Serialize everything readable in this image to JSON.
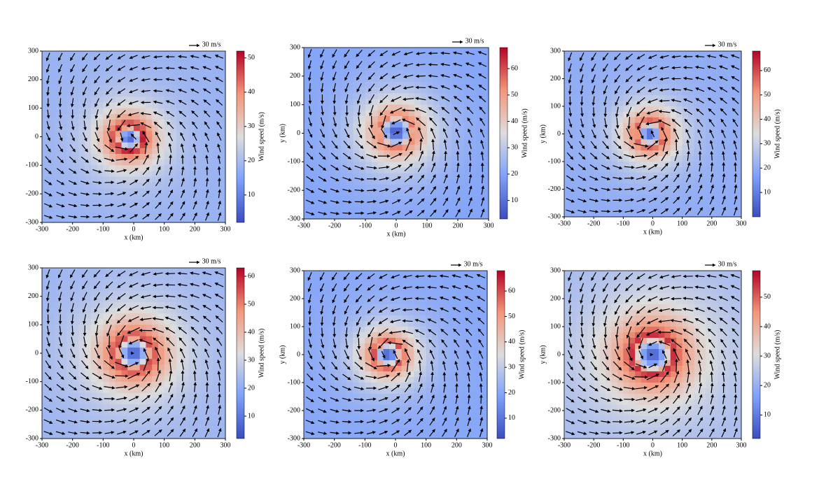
{
  "chart_data": [
    {
      "type": "quiver",
      "xlabel": "x (km)",
      "xlim": [
        -300,
        300
      ],
      "ylim": [
        -300,
        300
      ],
      "xticks": [
        -300,
        -200,
        -100,
        0,
        100,
        200,
        300
      ],
      "yticks": [
        -300,
        -200,
        -100,
        0,
        100,
        200,
        300
      ],
      "key": {
        "label": "30 m/s",
        "value": 30
      },
      "colorbar": {
        "label": "Wind speed (m/s)",
        "lim": [
          2,
          52
        ],
        "ticks": [
          10,
          20,
          30,
          40,
          50
        ]
      },
      "vortex": {
        "center": [
          -15,
          -5
        ],
        "max_speed": 50,
        "rmw": 45,
        "ambient_speed": 18
      }
    },
    {
      "type": "quiver",
      "xlabel": "x (km)",
      "ylabel": "y (km)",
      "xlim": [
        -300,
        300
      ],
      "ylim": [
        -300,
        300
      ],
      "xticks": [
        -300,
        -200,
        -100,
        0,
        100,
        200,
        300
      ],
      "yticks": [
        -300,
        -200,
        -100,
        0,
        100,
        200,
        300
      ],
      "key": {
        "label": "30 m/s",
        "value": 30
      },
      "colorbar": {
        "label": "Wind speed (m/s)",
        "lim": [
          3,
          68
        ],
        "ticks": [
          10,
          20,
          30,
          40,
          50,
          60
        ]
      },
      "vortex": {
        "center": [
          0,
          5
        ],
        "max_speed": 55,
        "rmw": 55,
        "ambient_speed": 20
      }
    },
    {
      "type": "quiver",
      "xlabel": "x (km)",
      "ylabel": "y (km)",
      "xlim": [
        -300,
        300
      ],
      "ylim": [
        -300,
        300
      ],
      "xticks": [
        -300,
        -200,
        -100,
        0,
        100,
        200,
        300
      ],
      "yticks": [
        -300,
        -200,
        -100,
        0,
        100,
        200,
        300
      ],
      "key": {
        "label": "30 m/s",
        "value": 30
      },
      "colorbar": {
        "label": "Wind speed (m/s)",
        "lim": [
          0,
          68
        ],
        "ticks": [
          10,
          20,
          30,
          40,
          50,
          60
        ]
      },
      "vortex": {
        "center": [
          -10,
          0
        ],
        "max_speed": 60,
        "rmw": 45,
        "ambient_speed": 20
      }
    },
    {
      "type": "quiver",
      "xlabel": "x (km)",
      "xlim": [
        -300,
        300
      ],
      "ylim": [
        -300,
        300
      ],
      "xticks": [
        -300,
        -200,
        -100,
        0,
        100,
        200,
        300
      ],
      "yticks": [
        -300,
        -200,
        -100,
        0,
        100,
        200,
        300
      ],
      "key": {
        "label": "30 m/s",
        "value": 30
      },
      "colorbar": {
        "label": "Wind speed (m/s)",
        "lim": [
          2,
          63
        ],
        "ticks": [
          10,
          20,
          30,
          40,
          50,
          60
        ]
      },
      "vortex": {
        "center": [
          0,
          0
        ],
        "max_speed": 58,
        "rmw": 60,
        "ambient_speed": 22
      }
    },
    {
      "type": "quiver",
      "xlabel": "x (km)",
      "ylabel": "y (km)",
      "xlim": [
        -300,
        300
      ],
      "ylim": [
        -300,
        300
      ],
      "xticks": [
        -300,
        -200,
        -100,
        0,
        100,
        200,
        300
      ],
      "yticks": [
        -300,
        -200,
        -100,
        0,
        100,
        200,
        300
      ],
      "key": {
        "label": "30 m/s",
        "value": 30
      },
      "colorbar": {
        "label": "Wind speed (m/s)",
        "lim": [
          2,
          68
        ],
        "ticks": [
          10,
          20,
          30,
          40,
          50,
          60
        ]
      },
      "vortex": {
        "center": [
          -25,
          0
        ],
        "max_speed": 60,
        "rmw": 45,
        "ambient_speed": 20
      }
    },
    {
      "type": "quiver",
      "xlabel": "x (km)",
      "ylabel": "y (km)",
      "xlim": [
        -300,
        300
      ],
      "ylim": [
        -300,
        300
      ],
      "xticks": [
        -300,
        -200,
        -100,
        0,
        100,
        200,
        300
      ],
      "yticks": [
        -300,
        -200,
        -100,
        0,
        100,
        200,
        300
      ],
      "key": {
        "label": "30 m/s",
        "value": 30
      },
      "colorbar": {
        "label": "Wind speed (m/s)",
        "lim": [
          2,
          59
        ],
        "ticks": [
          10,
          20,
          30,
          40,
          50
        ]
      },
      "vortex": {
        "center": [
          0,
          0
        ],
        "max_speed": 55,
        "rmw": 70,
        "ambient_speed": 22
      }
    }
  ]
}
